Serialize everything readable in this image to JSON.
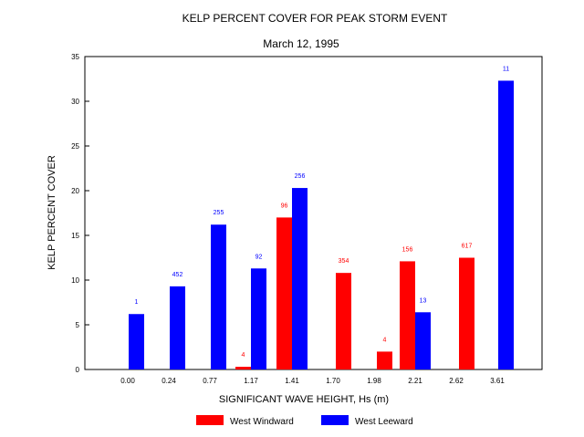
{
  "chart_data": {
    "type": "bar",
    "title": "KELP PERCENT COVER FOR PEAK STORM EVENT",
    "subtitle": "March 12, 1995",
    "xlabel": "SIGNIFICANT  WAVE HEIGHT, Hs  (m)",
    "ylabel": "KELP  PERCENT COVER",
    "ylim": [
      0,
      35
    ],
    "yticks": [
      0,
      5,
      10,
      15,
      20,
      25,
      30,
      35
    ],
    "grid": false,
    "legend_position": "bottom",
    "categories": [
      "0.00",
      "0.24",
      "0.77",
      "1.17",
      "1.41",
      "1.70",
      "1.98",
      "2.21",
      "2.62",
      "3.61"
    ],
    "series": [
      {
        "name": "West Windward",
        "color": "#ff0000",
        "values": [
          null,
          null,
          null,
          0.3,
          17.0,
          10.8,
          2.0,
          12.1,
          12.5,
          null
        ],
        "labels": [
          "",
          "",
          "",
          "4",
          "96",
          "354",
          "4",
          "156",
          "617",
          ""
        ]
      },
      {
        "name": "West Leeward",
        "color": "#0000ff",
        "values": [
          6.2,
          9.3,
          16.2,
          11.3,
          20.3,
          null,
          null,
          6.4,
          null,
          32.3
        ],
        "labels": [
          "1",
          "452",
          "255",
          "92",
          "256",
          "",
          "",
          "13",
          "",
          "11"
        ]
      }
    ]
  }
}
